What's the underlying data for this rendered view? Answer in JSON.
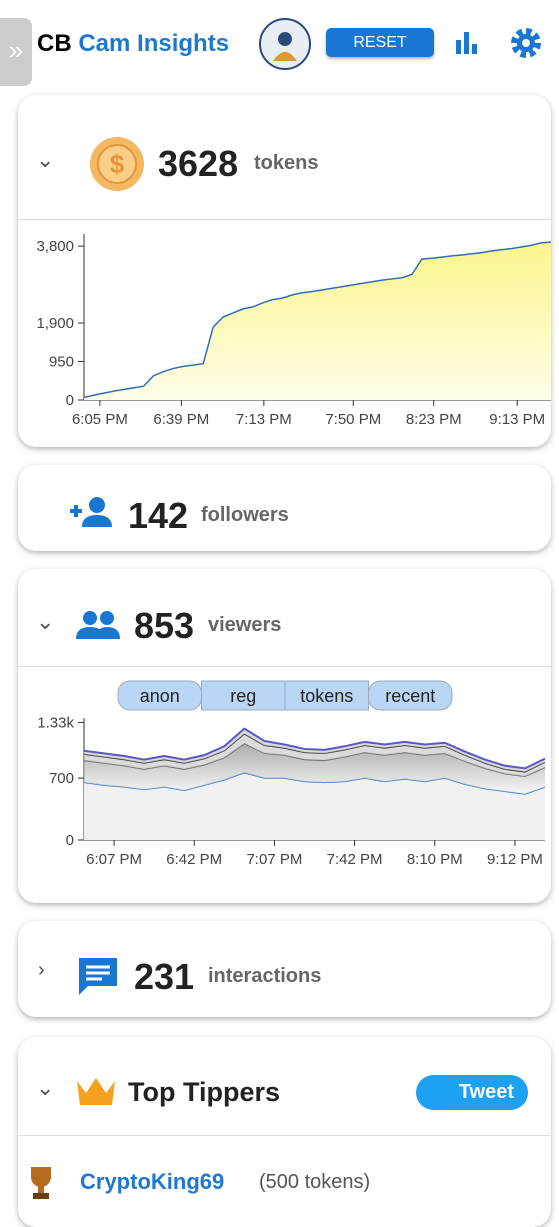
{
  "header": {
    "brand_prefix": "CB",
    "brand": "Cam Insights",
    "reset": "RESET"
  },
  "tokens": {
    "count": 3628,
    "unit": "tokens",
    "chart": {
      "type": "area",
      "color": "#2f6fb5",
      "values": [
        60,
        120,
        170,
        220,
        260,
        300,
        340,
        600,
        700,
        780,
        830,
        860,
        900,
        1800,
        2050,
        2150,
        2250,
        2300,
        2400,
        2480,
        2520,
        2600,
        2650,
        2680,
        2720,
        2760,
        2800,
        2840,
        2880,
        2920,
        2960,
        2990,
        3020,
        3100,
        3480,
        3500,
        3530,
        3560,
        3580,
        3610,
        3640,
        3680,
        3710,
        3740,
        3780,
        3820,
        3880,
        3900
      ],
      "xlim": [
        0,
        47
      ],
      "xticks": [
        {
          "value": 1.6,
          "label": "6:05 PM"
        },
        {
          "value": 9.8,
          "label": "6:39 PM"
        },
        {
          "value": 18.1,
          "label": "7:13 PM"
        },
        {
          "value": 27.1,
          "label": "7:50 PM"
        },
        {
          "value": 35.2,
          "label": "8:23 PM"
        },
        {
          "value": 43.6,
          "label": "9:13 PM"
        }
      ],
      "ylim": [
        0,
        4100
      ],
      "yticks": [
        0,
        950,
        {
          "value": 1900,
          "label": "1,900"
        },
        {
          "value": 3800,
          "label": "3,800"
        }
      ]
    }
  },
  "followers": {
    "count": 142,
    "unit": "followers"
  },
  "viewers": {
    "count": 853,
    "unit": "viewers",
    "chart": {
      "type": "stacked-area",
      "series": [
        {
          "name": "anon",
          "color": "#3a78c2",
          "values": [
            650,
            620,
            600,
            570,
            600,
            560,
            620,
            680,
            760,
            700,
            700,
            660,
            650,
            660,
            700,
            660,
            690,
            660,
            700,
            630,
            580,
            550,
            520,
            600
          ]
        },
        {
          "name": "reg",
          "color": "#666666",
          "values": [
            250,
            250,
            240,
            230,
            240,
            240,
            230,
            250,
            330,
            280,
            260,
            250,
            250,
            280,
            290,
            300,
            300,
            300,
            280,
            260,
            230,
            200,
            200,
            220
          ]
        },
        {
          "name": "tokens",
          "color": "#333333",
          "values": [
            70,
            70,
            70,
            70,
            70,
            70,
            70,
            80,
            110,
            90,
            80,
            80,
            80,
            80,
            80,
            80,
            80,
            80,
            80,
            70,
            60,
            50,
            50,
            60
          ]
        },
        {
          "name": "recent",
          "color": "#5a55c8",
          "values": [
            40,
            40,
            40,
            40,
            40,
            40,
            40,
            50,
            60,
            50,
            40,
            40,
            40,
            40,
            40,
            40,
            40,
            40,
            40,
            40,
            40,
            40,
            40,
            40
          ]
        }
      ],
      "xlim": [
        0,
        23
      ],
      "xticks": [
        {
          "value": 1.5,
          "label": "6:07 PM"
        },
        {
          "value": 5.5,
          "label": "6:42 PM"
        },
        {
          "value": 9.5,
          "label": "7:07 PM"
        },
        {
          "value": 13.5,
          "label": "7:42 PM"
        },
        {
          "value": 17.5,
          "label": "8:10 PM"
        },
        {
          "value": 21.5,
          "label": "9:12 PM"
        }
      ],
      "ylim": [
        0,
        1380
      ],
      "yticks": [
        0,
        700,
        {
          "value": 1330,
          "label": "1.33k"
        }
      ]
    }
  },
  "interactions": {
    "count": 231,
    "unit": "interactions"
  },
  "top_tippers": {
    "title": "Top Tippers",
    "tweet": "Tweet",
    "rows": [
      {
        "name": "CryptoKing69",
        "amount": "(500 tokens)"
      }
    ]
  }
}
